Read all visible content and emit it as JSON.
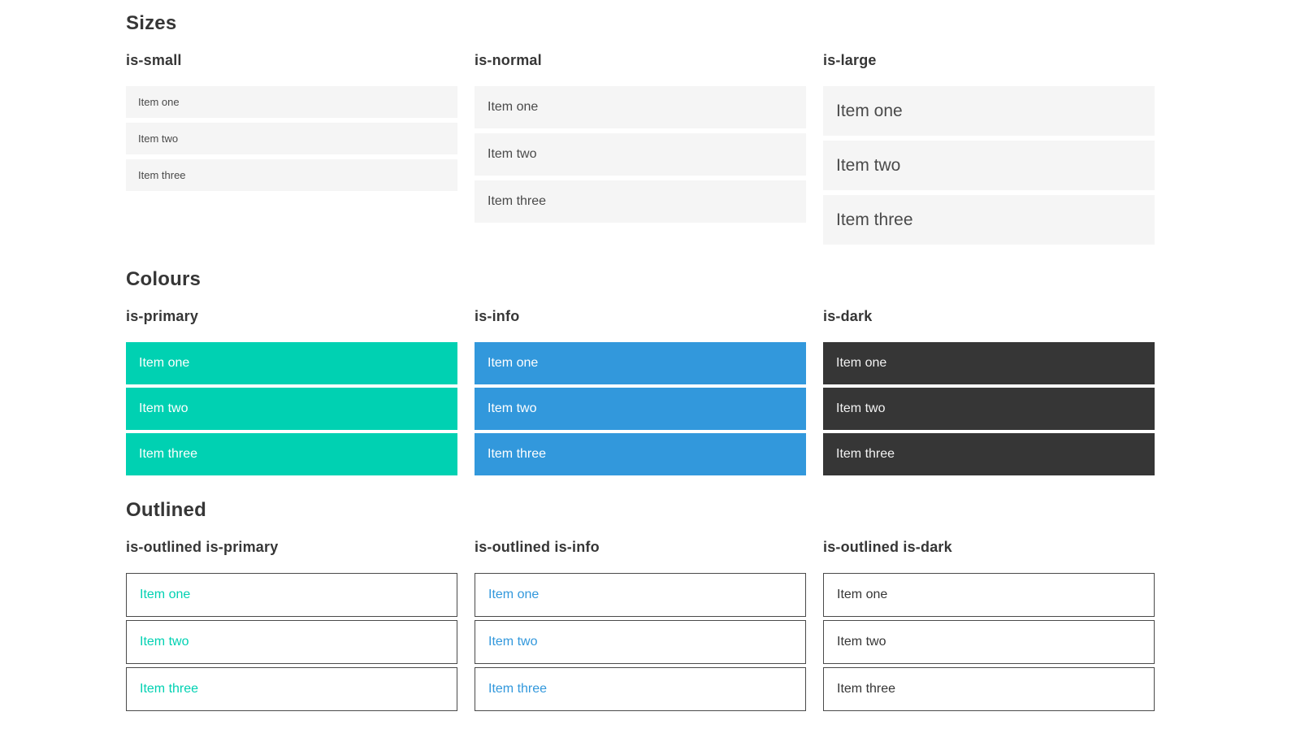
{
  "colors": {
    "primary": "#00d1b2",
    "info": "#3298dc",
    "dark": "#363636",
    "item-bg": "#f5f5f5",
    "text": "#4a4a4a",
    "heading": "#363636",
    "page-bg": "#ffffff"
  },
  "sections": [
    {
      "title": "Sizes",
      "columns": [
        {
          "heading": "is-small",
          "items": [
            "Item one",
            "Item two",
            "Item three"
          ]
        },
        {
          "heading": "is-normal",
          "items": [
            "Item one",
            "Item two",
            "Item three"
          ]
        },
        {
          "heading": "is-large",
          "items": [
            "Item one",
            "Item two",
            "Item three"
          ]
        }
      ]
    },
    {
      "title": "Colours",
      "columns": [
        {
          "heading": "is-primary",
          "items": [
            "Item one",
            "Item two",
            "Item three"
          ]
        },
        {
          "heading": "is-info",
          "items": [
            "Item one",
            "Item two",
            "Item three"
          ]
        },
        {
          "heading": "is-dark",
          "items": [
            "Item one",
            "Item two",
            "Item three"
          ]
        }
      ]
    },
    {
      "title": "Outlined",
      "columns": [
        {
          "heading": "is-outlined is-primary",
          "items": [
            "Item one",
            "Item two",
            "Item three"
          ]
        },
        {
          "heading": "is-outlined is-info",
          "items": [
            "Item one",
            "Item two",
            "Item three"
          ]
        },
        {
          "heading": "is-outlined is-dark",
          "items": [
            "Item one",
            "Item two",
            "Item three"
          ]
        }
      ]
    }
  ]
}
